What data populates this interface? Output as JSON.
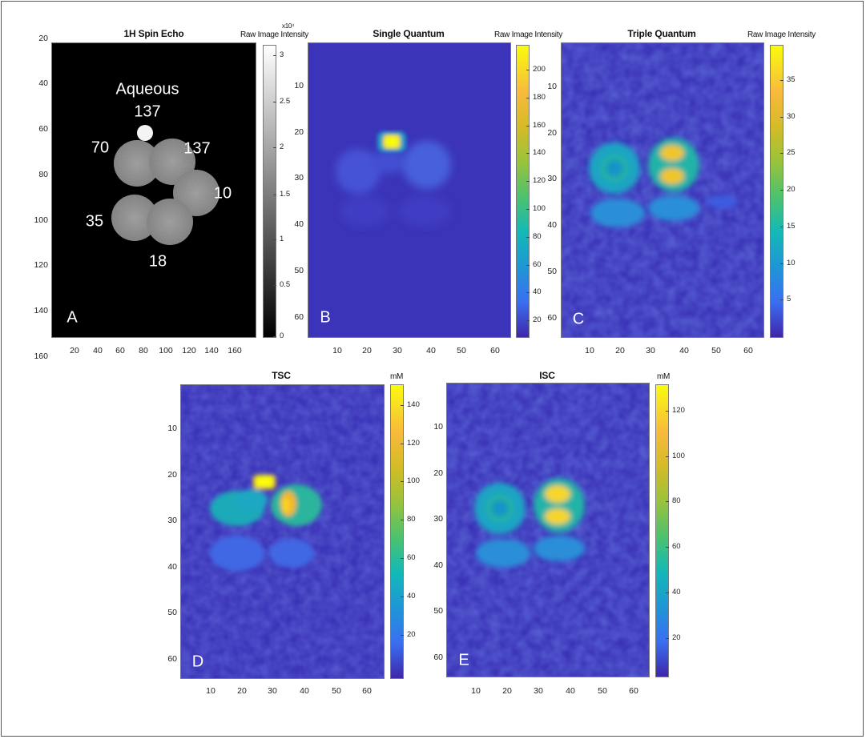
{
  "figure_panels": [
    {
      "id": "A",
      "title": "1H Spin Echo",
      "colorbar_label": "Raw Image Intensity",
      "colorbar_scale_note": "x10⁴",
      "colormap": "gray",
      "colorbar_ticks": [
        "3",
        "2.5",
        "2",
        "1.5",
        "1",
        "0.5",
        "0"
      ],
      "y_ticks": [
        "20",
        "40",
        "60",
        "80",
        "100",
        "120",
        "140",
        "160"
      ],
      "x_ticks": [
        "20",
        "40",
        "60",
        "80",
        "100",
        "120",
        "140",
        "160"
      ],
      "letter": "A",
      "annotations": [
        "Aqueous",
        "137",
        "70",
        "137",
        "10",
        "35",
        "18"
      ]
    },
    {
      "id": "B",
      "title": "Single Quantum",
      "colorbar_label": "Raw Image Intensity",
      "colormap": "parula",
      "colorbar_ticks": [
        "200",
        "180",
        "160",
        "140",
        "120",
        "100",
        "80",
        "60",
        "40",
        "20"
      ],
      "y_ticks": [
        "10",
        "20",
        "30",
        "40",
        "50",
        "60"
      ],
      "x_ticks": [
        "10",
        "20",
        "30",
        "40",
        "50",
        "60"
      ],
      "letter": "B"
    },
    {
      "id": "C",
      "title": "Triple Quantum",
      "colorbar_label": "Raw Image Intensity",
      "colormap": "parula",
      "colorbar_ticks": [
        "35",
        "30",
        "25",
        "20",
        "15",
        "10",
        "5"
      ],
      "y_ticks": [
        "10",
        "20",
        "30",
        "40",
        "50",
        "60"
      ],
      "x_ticks": [
        "10",
        "20",
        "30",
        "40",
        "50",
        "60"
      ],
      "letter": "C"
    },
    {
      "id": "D",
      "title": "TSC",
      "colorbar_label": "mM",
      "colormap": "parula",
      "colorbar_ticks": [
        "140",
        "120",
        "100",
        "80",
        "60",
        "40",
        "20"
      ],
      "y_ticks": [
        "10",
        "20",
        "30",
        "40",
        "50",
        "60"
      ],
      "x_ticks": [
        "10",
        "20",
        "30",
        "40",
        "50",
        "60"
      ],
      "letter": "D"
    },
    {
      "id": "E",
      "title": "ISC",
      "colorbar_label": "mM",
      "colormap": "parula",
      "colorbar_ticks": [
        "120",
        "100",
        "80",
        "60",
        "40",
        "20"
      ],
      "y_ticks": [
        "10",
        "20",
        "30",
        "40",
        "50",
        "60"
      ],
      "x_ticks": [
        "10",
        "20",
        "30",
        "40",
        "50",
        "60"
      ],
      "letter": "E"
    }
  ],
  "colors": {
    "frame": "#3a5a8c",
    "parula_low": "#3e26a8",
    "parula_mid": "#14b8b8",
    "parula_high": "#f9fb0e",
    "gray_low": "#000000",
    "gray_high": "#ffffff"
  }
}
